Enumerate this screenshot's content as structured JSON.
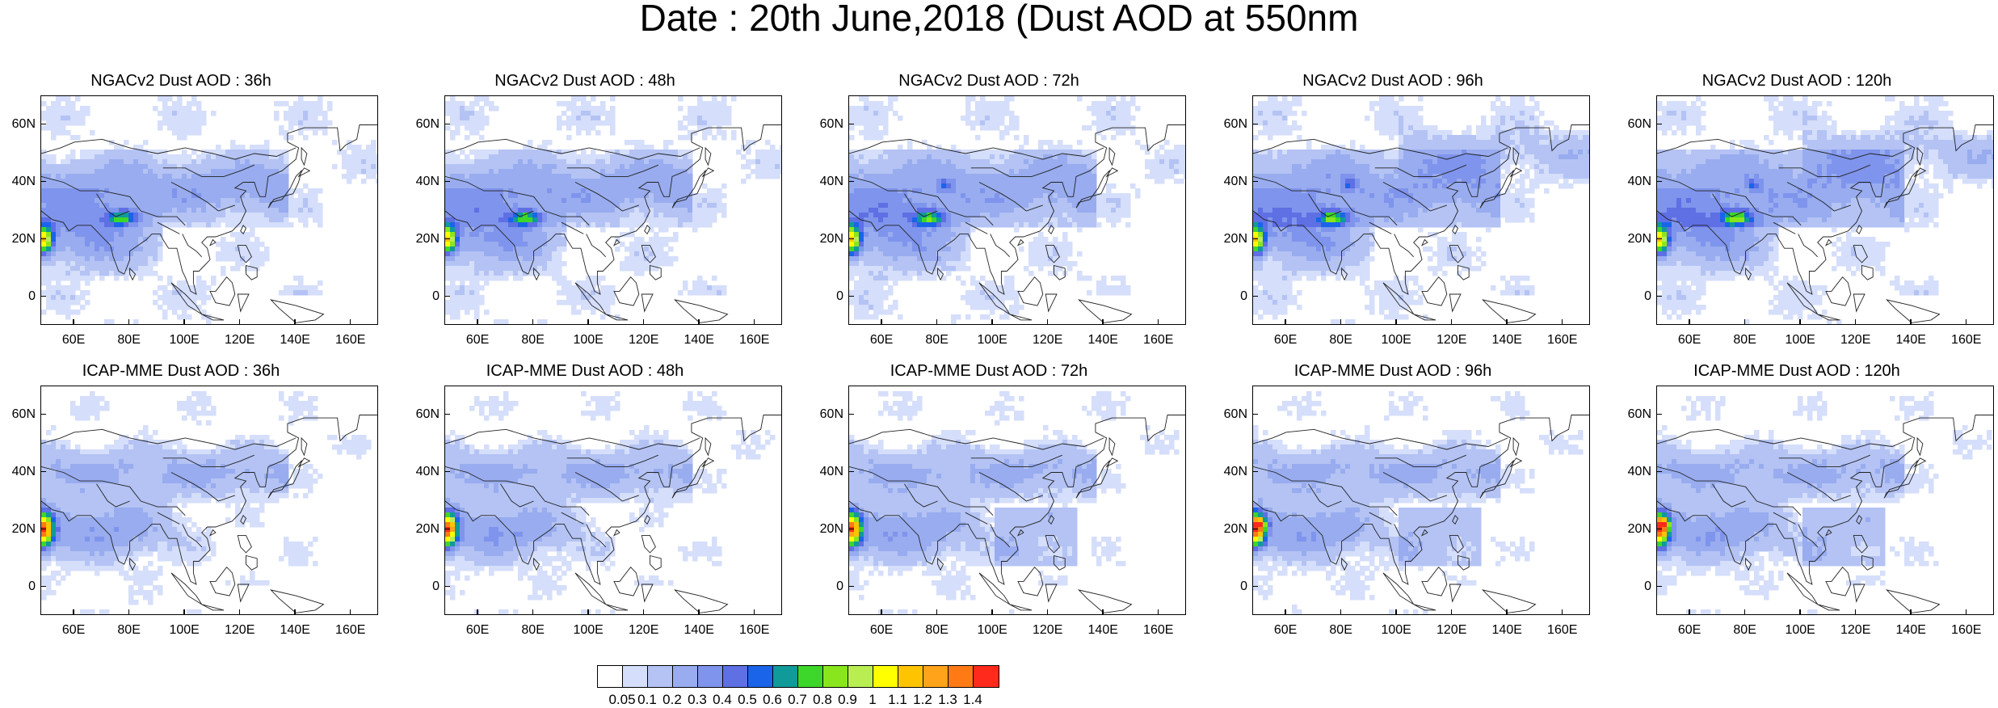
{
  "title": "Date : 20th June,2018 (Dust AOD at 550nm",
  "panels": [
    {
      "title": "NGACv2 Dust AOD : 36h",
      "model": "ngac",
      "lead": 36
    },
    {
      "title": "NGACv2 Dust AOD : 48h",
      "model": "ngac",
      "lead": 48
    },
    {
      "title": "NGACv2 Dust AOD : 72h",
      "model": "ngac",
      "lead": 72
    },
    {
      "title": "NGACv2 Dust AOD : 96h",
      "model": "ngac",
      "lead": 96
    },
    {
      "title": "NGACv2 Dust AOD : 120h",
      "model": "ngac",
      "lead": 120
    },
    {
      "title": "ICAP-MME Dust AOD : 36h",
      "model": "icap",
      "lead": 36
    },
    {
      "title": "ICAP-MME Dust AOD : 48h",
      "model": "icap",
      "lead": 48
    },
    {
      "title": "ICAP-MME Dust AOD : 72h",
      "model": "icap",
      "lead": 72
    },
    {
      "title": "ICAP-MME Dust AOD : 96h",
      "model": "icap",
      "lead": 96
    },
    {
      "title": "ICAP-MME Dust AOD : 120h",
      "model": "icap",
      "lead": 120
    }
  ],
  "axes": {
    "lon_range": [
      48,
      170
    ],
    "lat_range": [
      -10,
      70
    ],
    "x_ticks": [
      "60E",
      "80E",
      "100E",
      "120E",
      "140E",
      "160E"
    ],
    "y_ticks": [
      "60N",
      "40N",
      "20N",
      "0"
    ]
  },
  "colorbar": {
    "colors": [
      "#ffffff",
      "#d5defa",
      "#b4c3f4",
      "#98acef",
      "#7f94ec",
      "#5f6fe4",
      "#1a64ea",
      "#109a9a",
      "#3dd62a",
      "#8ae61c",
      "#b9ee52",
      "#ffff00",
      "#ffc400",
      "#ffa31a",
      "#ff7a14",
      "#ff2a1c"
    ],
    "labels": [
      "0.05",
      "0.1",
      "0.2",
      "0.3",
      "0.4",
      "0.5",
      "0.6",
      "0.7",
      "0.8",
      "0.9",
      "1",
      "1.1",
      "1.2",
      "1.3",
      "1.4"
    ]
  }
}
